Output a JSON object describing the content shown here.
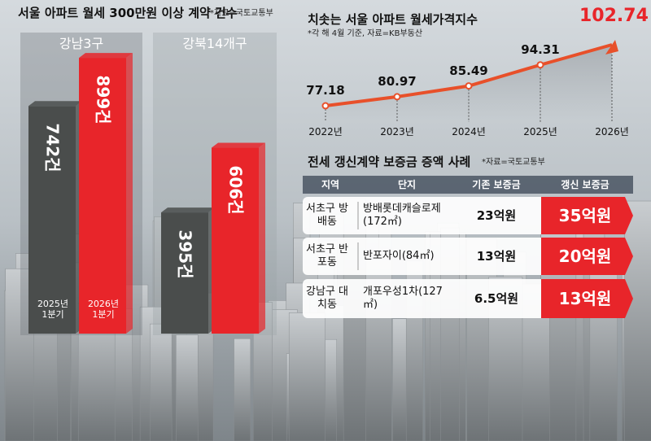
{
  "chart_data": [
    {
      "type": "bar",
      "title": "서울 아파트 월세 300만원 이상 계약 건수",
      "note": "*자료=국토교통부",
      "categories": [
        "강남3구",
        "강북14개구"
      ],
      "series": [
        {
          "name": "2025년 1분기",
          "color": "#4a4d4c",
          "values": [
            742,
            395
          ],
          "value_labels": [
            "742건",
            "395건"
          ]
        },
        {
          "name": "2026년 1분기",
          "color": "#e8252a",
          "values": [
            899,
            606
          ],
          "value_labels": [
            "899건",
            "606건"
          ]
        }
      ]
    },
    {
      "type": "line",
      "title": "치솟는 서울 아파트 월세가격지수",
      "subtitle": "*각 해 4월 기준, 자료=KB부동산",
      "categories": [
        "2022년",
        "2023년",
        "2024년",
        "2025년",
        "2026년"
      ],
      "values": [
        77.18,
        80.97,
        85.49,
        94.31,
        102.74
      ],
      "color": "#e8502a"
    }
  ],
  "table": {
    "title": "전세 갱신계약 보증금 증액 사례",
    "note": "*자료=국토교통부",
    "header": [
      "지역",
      "단지",
      "기존 보증금",
      "갱신 보증금"
    ],
    "rows": [
      [
        "서초구 방배동",
        "방배롯데캐슬로제 (172㎡)",
        "23억원",
        "35억원"
      ],
      [
        "서초구 반포동",
        "반포자이(84㎡)",
        "13억원",
        "20억원"
      ],
      [
        "강남구 대치동",
        "개포우성1차(127㎡)",
        "6.5억원",
        "13억원"
      ]
    ]
  }
}
